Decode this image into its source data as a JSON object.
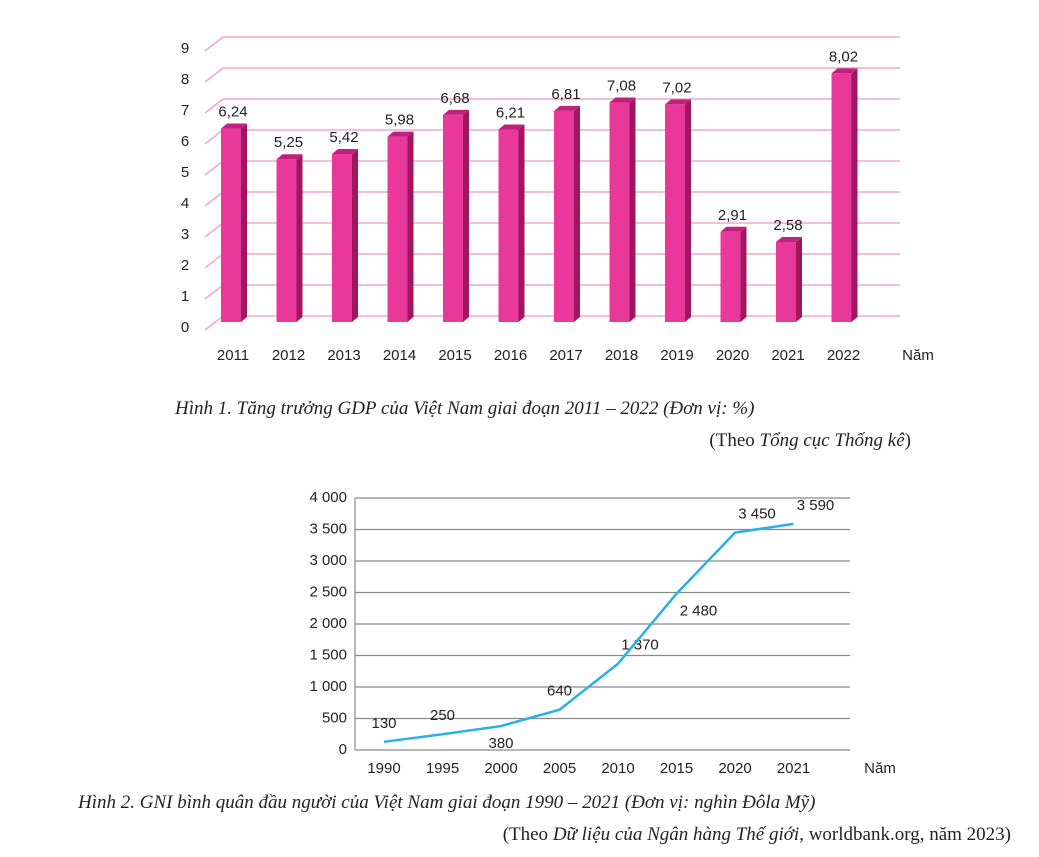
{
  "chart_data": [
    {
      "type": "bar",
      "categories": [
        "2011",
        "2012",
        "2013",
        "2014",
        "2015",
        "2016",
        "2017",
        "2018",
        "2019",
        "2020",
        "2021",
        "2022"
      ],
      "values": [
        6.24,
        5.25,
        5.42,
        5.98,
        6.68,
        6.21,
        6.81,
        7.08,
        7.02,
        2.91,
        2.58,
        8.02
      ],
      "value_labels": [
        "6,24",
        "5,25",
        "5,42",
        "5,98",
        "6,68",
        "6,21",
        "6,81",
        "7,08",
        "7,02",
        "2,91",
        "2,58",
        "8,02"
      ],
      "color": "#e8399a",
      "ylim": [
        0,
        9
      ],
      "yticks": [
        0,
        1,
        2,
        3,
        4,
        5,
        6,
        7,
        8,
        9
      ],
      "grid": true,
      "x_label": "Năm",
      "caption": "Hình 1. Tăng trưởng GDP của Việt Nam giai đoạn 2011 – 2022 (Đơn vị: %)",
      "source": [
        "(Theo",
        "Tổng cục Thống kê",
        ")"
      ]
    },
    {
      "type": "line",
      "categories": [
        "1990",
        "1995",
        "2000",
        "2005",
        "2010",
        "2015",
        "2020",
        "2021"
      ],
      "values": [
        130,
        250,
        380,
        640,
        1370,
        2480,
        3450,
        3590
      ],
      "value_labels": [
        "130",
        "250",
        "380",
        "640",
        "1 370",
        "2 480",
        "3 450",
        "3 590"
      ],
      "color": "#29b0e6",
      "ylim": [
        0,
        4000
      ],
      "yticks": [
        0,
        500,
        {
          "value": 1000,
          "label": "1 000"
        },
        {
          "value": 1500,
          "label": "1 500"
        },
        {
          "value": 2000,
          "label": "2 000"
        },
        {
          "value": 2500,
          "label": "2 500"
        },
        {
          "value": 3000,
          "label": "3 000"
        },
        {
          "value": 3500,
          "label": "3 500"
        },
        {
          "value": 4000,
          "label": "4 000"
        }
      ],
      "grid": true,
      "x_label": "Năm",
      "caption": "Hình 2. GNI bình quân đầu người của Việt Nam giai đoạn 1990 – 2021 (Đơn vị: nghìn Đôla Mỹ)",
      "source": [
        "(Theo",
        "Dữ liệu của Ngân hàng Thế giới",
        ", worldbank.org, năm 2023)"
      ]
    }
  ]
}
